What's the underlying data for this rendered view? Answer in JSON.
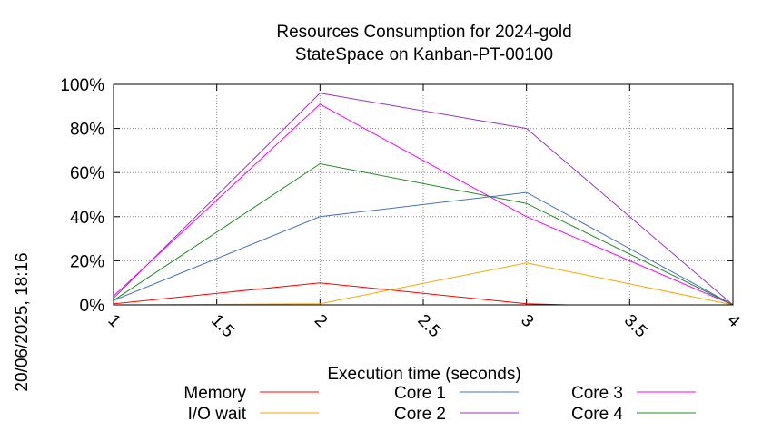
{
  "chart_data": {
    "type": "line",
    "title": "Resources Consumption for 2024-gold",
    "subtitle": "StateSpace on Kanban-PT-00100",
    "xlabel": "Execution time (seconds)",
    "ylabel": "",
    "timestamp": "20/06/2025, 18:16",
    "xlim": [
      1,
      4
    ],
    "ylim": [
      0,
      100
    ],
    "x_ticks": [
      "1",
      "1.5",
      "2",
      "2.5",
      "3",
      "3.5",
      "4"
    ],
    "y_ticks": [
      "0%",
      "20%",
      "40%",
      "60%",
      "80%",
      "100%"
    ],
    "grid": true,
    "legend_position": "bottom",
    "series": [
      {
        "name": "Memory",
        "color": "#ff0000",
        "x": [
          1,
          2,
          3,
          3.2,
          4
        ],
        "y": [
          0.5,
          10,
          0.5,
          0,
          0
        ]
      },
      {
        "name": "I/O wait",
        "color": "#ffa500",
        "x": [
          1,
          2,
          3,
          4
        ],
        "y": [
          0,
          0.5,
          19,
          0
        ]
      },
      {
        "name": "Core 1",
        "color": "#4472c4",
        "x": [
          1,
          2,
          3,
          4
        ],
        "y": [
          2,
          40,
          51,
          0
        ]
      },
      {
        "name": "Core 2",
        "color": "#9a32cd",
        "x": [
          1,
          2,
          3,
          4
        ],
        "y": [
          3,
          96,
          80,
          0
        ]
      },
      {
        "name": "Core 3",
        "color": "#ff00ff",
        "x": [
          1,
          2,
          3,
          4
        ],
        "y": [
          4,
          91,
          40,
          0
        ]
      },
      {
        "name": "Core 4",
        "color": "#228b22",
        "x": [
          1,
          2,
          3,
          4
        ],
        "y": [
          2,
          64,
          46,
          0
        ]
      }
    ]
  }
}
